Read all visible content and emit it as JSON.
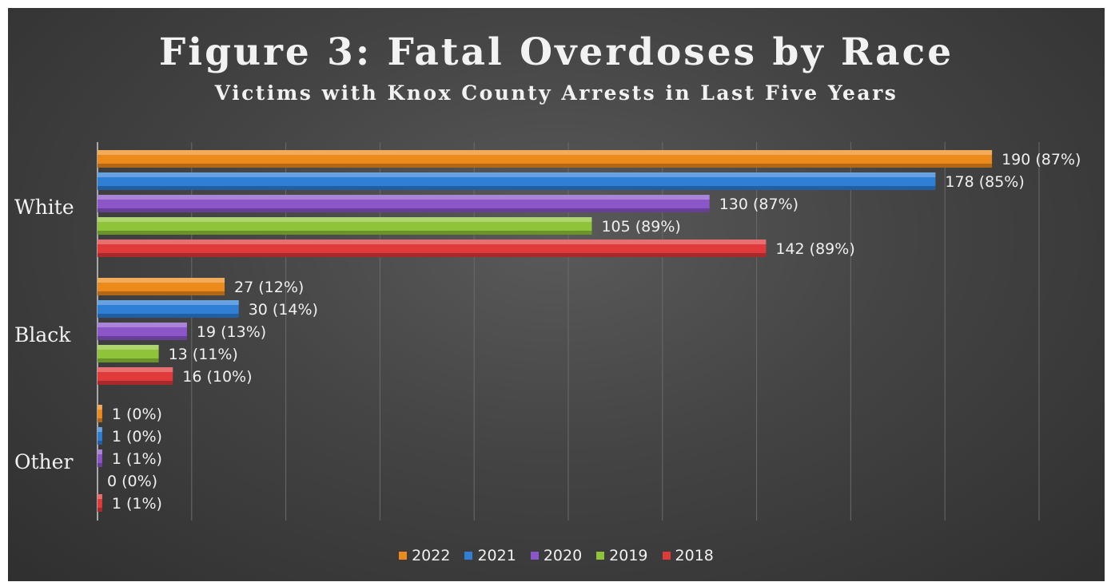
{
  "chart_data": {
    "type": "bar",
    "orientation": "horizontal",
    "title": "Figure 3: Fatal Overdoses by Race",
    "subtitle": "Victims with Knox County Arrests in Last Five Years",
    "categories": [
      "White",
      "Black",
      "Other"
    ],
    "series": [
      {
        "name": "2022",
        "color": "#ed8a1c",
        "values": [
          190,
          27,
          1
        ],
        "labels": [
          "190 (87%)",
          "27 (12%)",
          "1 (0%)"
        ]
      },
      {
        "name": "2021",
        "color": "#2f7fd6",
        "values": [
          178,
          30,
          1
        ],
        "labels": [
          "178 (85%)",
          "30 (14%)",
          "1 (0%)"
        ]
      },
      {
        "name": "2020",
        "color": "#8a56c8",
        "values": [
          130,
          19,
          1
        ],
        "labels": [
          "130 (87%)",
          "19 (13%)",
          "1 (1%)"
        ]
      },
      {
        "name": "2019",
        "color": "#8fc43a",
        "values": [
          105,
          13,
          0
        ],
        "labels": [
          "105 (89%)",
          "13 (11%)",
          "0 (0%)"
        ]
      },
      {
        "name": "2018",
        "color": "#e03a3a",
        "values": [
          142,
          16,
          1
        ],
        "labels": [
          "142 (89%)",
          "16 (10%)",
          "1 (1%)"
        ]
      }
    ],
    "xlim": [
      0,
      200
    ],
    "grid": true,
    "legend_position": "bottom"
  }
}
